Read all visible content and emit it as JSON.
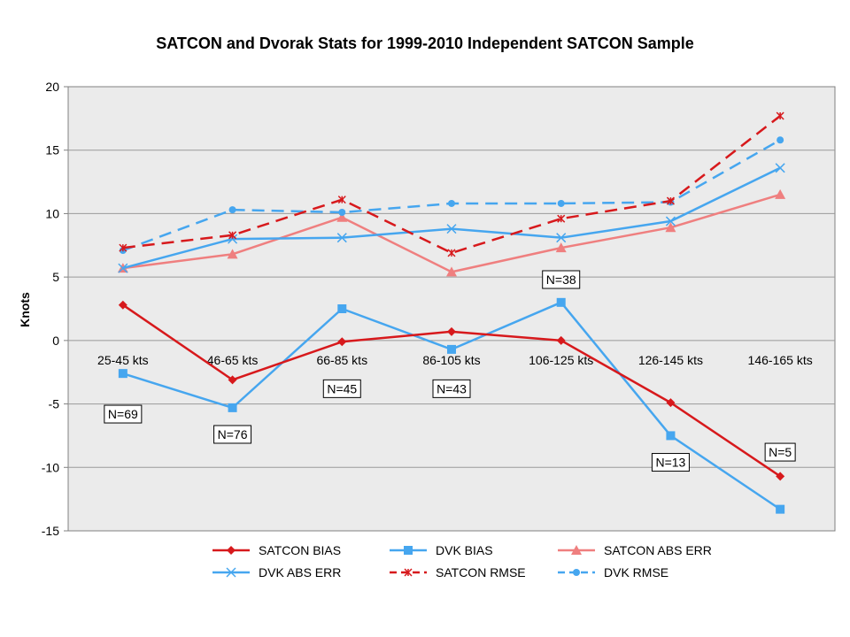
{
  "chart_data": {
    "type": "line",
    "title": "SATCON and Dvorak Stats for 1999-2010 Independent SATCON Sample",
    "ylabel": "Knots",
    "xlabel": "",
    "ylim": [
      -15,
      20
    ],
    "yticks": [
      -15,
      -10,
      -5,
      0,
      5,
      10,
      15,
      20
    ],
    "grid": true,
    "legend_position": "bottom",
    "categories": [
      "25-45 kts",
      "46-65 kts",
      "66-85 kts",
      "86-105 kts",
      "106-125 kts",
      "126-145 kts",
      "146-165 kts"
    ],
    "series": [
      {
        "name": "SATCON BIAS",
        "values": [
          2.8,
          -3.1,
          -0.1,
          0.7,
          0.0,
          -4.9,
          -10.7
        ],
        "color": "#d7191c",
        "dash": "solid",
        "marker": "diamond"
      },
      {
        "name": "DVK BIAS",
        "values": [
          -2.6,
          -5.3,
          2.5,
          -0.7,
          3.0,
          -7.5,
          -13.3
        ],
        "color": "#46a6ef",
        "dash": "solid",
        "marker": "square"
      },
      {
        "name": "SATCON ABS ERR",
        "values": [
          5.7,
          6.8,
          9.7,
          5.4,
          7.3,
          8.9,
          11.5
        ],
        "color": "#ef7f7f",
        "dash": "solid",
        "marker": "triangle"
      },
      {
        "name": "DVK ABS ERR",
        "values": [
          5.7,
          8.0,
          8.1,
          8.8,
          8.1,
          9.4,
          13.6
        ],
        "color": "#46a6ef",
        "dash": "solid",
        "marker": "x"
      },
      {
        "name": "SATCON RMSE",
        "values": [
          7.3,
          8.3,
          11.1,
          6.9,
          9.6,
          11.0,
          17.7
        ],
        "color": "#d7191c",
        "dash": "dashed",
        "marker": "star"
      },
      {
        "name": "DVK RMSE",
        "values": [
          7.1,
          10.3,
          10.1,
          10.8,
          10.8,
          10.9,
          15.8
        ],
        "color": "#46a6ef",
        "dash": "dashed",
        "marker": "circle"
      }
    ],
    "annotations": [
      {
        "text": "N=69",
        "category_index": 0,
        "y": -5.8
      },
      {
        "text": "N=76",
        "category_index": 1,
        "y": -7.4
      },
      {
        "text": "N=45",
        "category_index": 2,
        "y": -3.8
      },
      {
        "text": "N=43",
        "category_index": 3,
        "y": -3.8
      },
      {
        "text": "N=38",
        "category_index": 4,
        "y": 4.8
      },
      {
        "text": "N=13",
        "category_index": 5,
        "y": -9.6
      },
      {
        "text": "N=5",
        "category_index": 6,
        "y": -8.8
      }
    ],
    "colors": {
      "plot_background": "#ebebeb",
      "grid": "#9a9a9a",
      "axis": "#808080"
    }
  }
}
